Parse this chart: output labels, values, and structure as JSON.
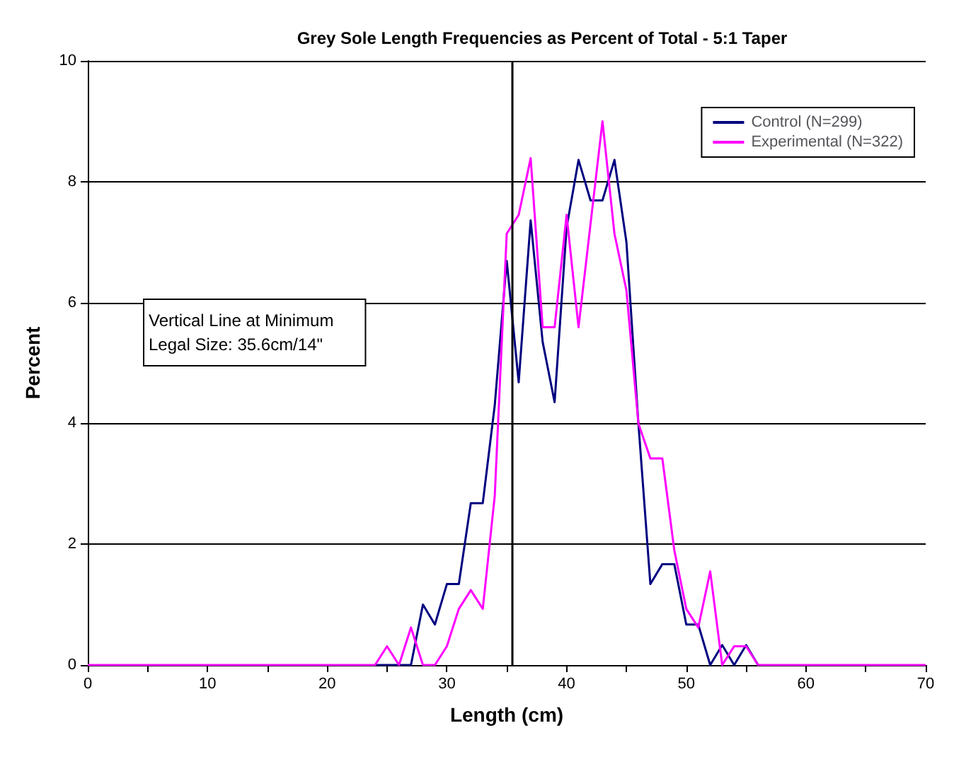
{
  "chart_data": {
    "type": "line",
    "title": "Grey Sole Length Frequencies as Percent of Total - 5:1 Taper",
    "xlabel": "Length (cm)",
    "ylabel": "Percent",
    "x": [
      0,
      1,
      2,
      3,
      4,
      5,
      6,
      7,
      8,
      9,
      10,
      11,
      12,
      13,
      14,
      15,
      16,
      17,
      18,
      19,
      20,
      21,
      22,
      23,
      24,
      25,
      26,
      27,
      28,
      29,
      30,
      31,
      32,
      33,
      34,
      35,
      36,
      37,
      38,
      39,
      40,
      41,
      42,
      43,
      44,
      45,
      46,
      47,
      48,
      49,
      50,
      51,
      52,
      53,
      54,
      55,
      56,
      57,
      58,
      59,
      60,
      61,
      62,
      63,
      64,
      65,
      66,
      67,
      68,
      69,
      70
    ],
    "series": [
      {
        "name": "Control (N=299)",
        "color": "#000080",
        "values": [
          null,
          null,
          null,
          null,
          null,
          null,
          null,
          null,
          null,
          null,
          null,
          null,
          null,
          null,
          null,
          null,
          null,
          null,
          null,
          null,
          null,
          null,
          null,
          null,
          0,
          0,
          0,
          0,
          1.0,
          0.67,
          1.34,
          1.34,
          2.68,
          2.68,
          4.3,
          6.69,
          4.68,
          7.36,
          5.35,
          4.35,
          7.24,
          8.36,
          7.69,
          7.69,
          8.36,
          7.0,
          4.0,
          1.34,
          1.67,
          1.67,
          0.67,
          0.67,
          0,
          0.33,
          0,
          0.33,
          0,
          null,
          null,
          null,
          null,
          null,
          null,
          null,
          null,
          null,
          null,
          null,
          null,
          null,
          null
        ]
      },
      {
        "name": "Experimental (N=322)",
        "color": "#ff00ff",
        "values": [
          0,
          0,
          0,
          0,
          0,
          0,
          0,
          0,
          0,
          0,
          0,
          0,
          0,
          0,
          0,
          0,
          0,
          0,
          0,
          0,
          0,
          0,
          0,
          0,
          0,
          0.31,
          0,
          0.62,
          0,
          0,
          0.31,
          0.93,
          1.24,
          0.93,
          2.8,
          7.14,
          7.45,
          8.39,
          5.59,
          5.59,
          7.45,
          5.59,
          7.3,
          9.0,
          7.14,
          6.2,
          4.0,
          3.42,
          3.42,
          1.9,
          0.93,
          0.62,
          1.55,
          0,
          0.31,
          0.31,
          0,
          0,
          0,
          0,
          0,
          0,
          0,
          0,
          0,
          0,
          0,
          0,
          0,
          0,
          0
        ]
      }
    ],
    "xlim": [
      0,
      70
    ],
    "xticks": [
      0,
      {
        "value": 5,
        "label": null
      },
      10,
      {
        "value": 15,
        "label": null
      },
      20,
      {
        "value": 25,
        "label": null
      },
      30,
      {
        "value": 35,
        "label": null
      },
      40,
      {
        "value": 45,
        "label": null
      },
      50,
      {
        "value": 55,
        "label": null
      },
      60,
      {
        "value": 65,
        "label": null
      },
      70
    ],
    "ylim": [
      0,
      10
    ],
    "yticks": [
      0,
      2,
      4,
      6,
      8,
      10
    ],
    "grid": "y",
    "legend": "top right",
    "marker": "none",
    "line_style": "solid",
    "ref_lines": [
      {
        "axis": "x",
        "value": 35.4,
        "color": "#000000"
      }
    ],
    "annotations": [
      "Vertical Line at Minimum\nLegal Size: 35.6cm/14\""
    ]
  }
}
